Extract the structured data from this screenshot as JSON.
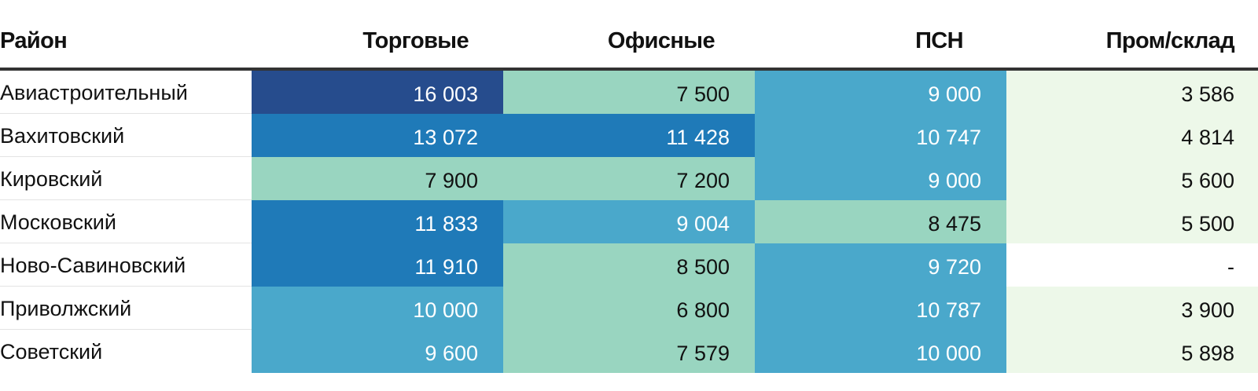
{
  "chart_data": {
    "type": "table",
    "columns": [
      "Район",
      "Торговые",
      "Офисные",
      "ПСН",
      "Пром/склад"
    ],
    "rows": [
      {
        "district": "Авиастроительный",
        "values": [
          16003,
          7500,
          9000,
          3586
        ],
        "display": [
          "16 003",
          "7 500",
          "9 000",
          "3 586"
        ]
      },
      {
        "district": "Вахитовский",
        "values": [
          13072,
          11428,
          10747,
          4814
        ],
        "display": [
          "13 072",
          "11 428",
          "10 747",
          "4 814"
        ]
      },
      {
        "district": "Кировский",
        "values": [
          7900,
          7200,
          9000,
          5600
        ],
        "display": [
          "7 900",
          "7 200",
          "9 000",
          "5 600"
        ]
      },
      {
        "district": "Московский",
        "values": [
          11833,
          9004,
          8475,
          5500
        ],
        "display": [
          "11 833",
          "9 004",
          "8 475",
          "5 500"
        ]
      },
      {
        "district": "Ново-Савиновский",
        "values": [
          11910,
          8500,
          9720,
          null
        ],
        "display": [
          "11 910",
          "8 500",
          "9 720",
          "-"
        ]
      },
      {
        "district": "Приволжский",
        "values": [
          10000,
          6800,
          10787,
          3900
        ],
        "display": [
          "10 000",
          "6 800",
          "10 787",
          "3 900"
        ]
      },
      {
        "district": "Советский",
        "values": [
          9600,
          7579,
          10000,
          5898
        ],
        "display": [
          "9 600",
          "7 579",
          "10 000",
          "5 898"
        ]
      }
    ],
    "color_scale": {
      "bins": [
        {
          "max": 6000,
          "bg": "#edf8e9",
          "fg": "#111111"
        },
        {
          "max": 9000,
          "bg": "#99d5c0",
          "fg": "#111111"
        },
        {
          "max": 11000,
          "bg": "#4aa8cb",
          "fg": "#ffffff"
        },
        {
          "max": 15000,
          "bg": "#1f7ab8",
          "fg": "#ffffff"
        },
        {
          "max": 1000000,
          "bg": "#264c8d",
          "fg": "#ffffff"
        }
      ],
      "empty_bg": "#ffffff",
      "empty_fg": "#111111"
    },
    "exact_colors": [
      [
        "#264c8d",
        "#99d5c0",
        "#4aa8cb",
        "#edf8e9"
      ],
      [
        "#1f7ab8",
        "#1f7ab8",
        "#4aa8cb",
        "#edf8e9"
      ],
      [
        "#99d5c0",
        "#99d5c0",
        "#4aa8cb",
        "#edf8e9"
      ],
      [
        "#1f7ab8",
        "#4aa8cb",
        "#99d5c0",
        "#edf8e9"
      ],
      [
        "#1f7ab8",
        "#99d5c0",
        "#4aa8cb",
        "#ffffff"
      ],
      [
        "#4aa8cb",
        "#99d5c0",
        "#4aa8cb",
        "#edf8e9"
      ],
      [
        "#4aa8cb",
        "#99d5c0",
        "#4aa8cb",
        "#edf8e9"
      ]
    ]
  }
}
